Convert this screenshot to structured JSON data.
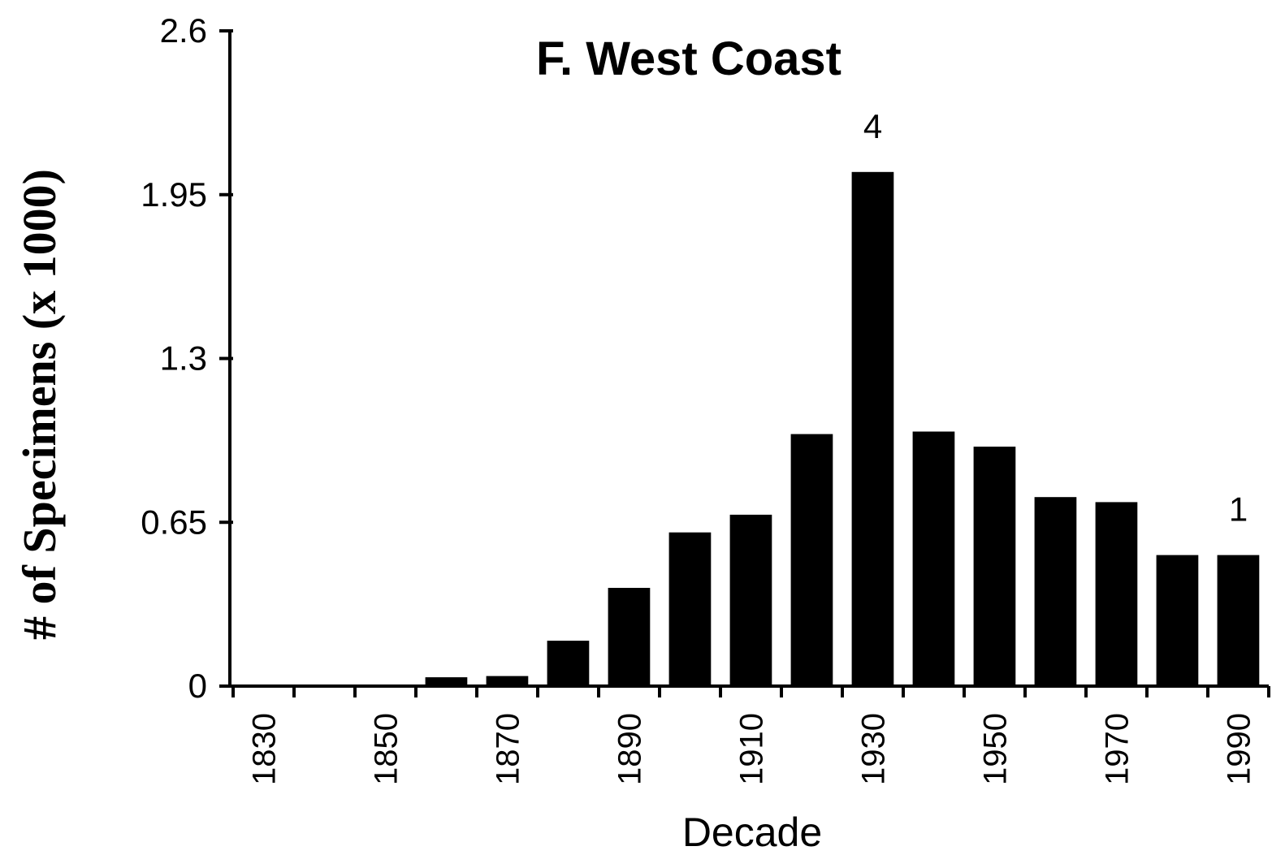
{
  "chart_data": {
    "type": "bar",
    "title": "F. West Coast",
    "xlabel": "Decade",
    "ylabel": "# of Specimens (x 1000)",
    "ylim": [
      0,
      2.6
    ],
    "yticks": [
      "0",
      "0.65",
      "1.3",
      "1.95",
      "2.6"
    ],
    "ytick_values": [
      0,
      0.65,
      1.3,
      1.95,
      2.6
    ],
    "categories": [
      "1830",
      "1840",
      "1850",
      "1860",
      "1870",
      "1880",
      "1890",
      "1900",
      "1910",
      "1920",
      "1930",
      "1940",
      "1950",
      "1960",
      "1970",
      "1980",
      "1990"
    ],
    "xtick_labels": [
      "1830",
      "",
      "1850",
      "",
      "1870",
      "",
      "1890",
      "",
      "1910",
      "",
      "1930",
      "",
      "1950",
      "",
      "1970",
      "",
      "1990"
    ],
    "values": [
      0.005,
      0.005,
      0.005,
      0.035,
      0.04,
      0.18,
      0.39,
      0.61,
      0.68,
      1.0,
      2.04,
      1.01,
      0.95,
      0.75,
      0.73,
      0.52,
      0.52
    ],
    "annotations": [
      {
        "category": "1930",
        "text": "4"
      },
      {
        "category": "1990",
        "text": "1"
      }
    ],
    "bar_color": "#000000",
    "grid": false,
    "legend": "none"
  }
}
